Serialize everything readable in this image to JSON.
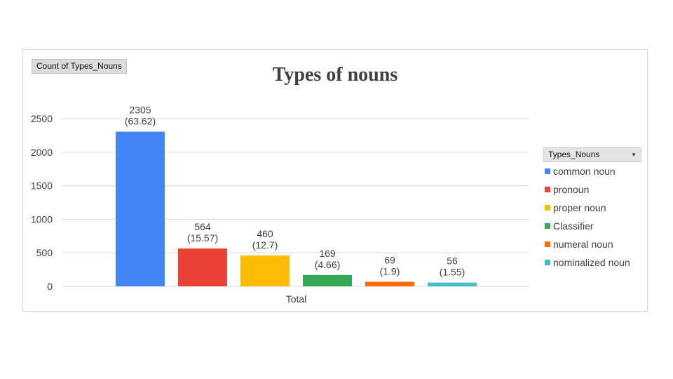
{
  "field_button_label": "Count of Types_Nouns",
  "legend_header_label": "Types_Nouns",
  "chart_data": {
    "type": "bar",
    "title": "Types of nouns",
    "xlabel": "",
    "ylabel": "",
    "categories": [
      "Total"
    ],
    "ylim": [
      0,
      2500
    ],
    "yticks": [
      0,
      500,
      1000,
      1500,
      2000,
      2500
    ],
    "grid": true,
    "legend_position": "right",
    "series": [
      {
        "name": "common noun",
        "values": [
          2305
        ],
        "label": "2305\n(63.62)",
        "color": "#4285f4"
      },
      {
        "name": "pronoun",
        "values": [
          564
        ],
        "label": "564\n(15.57)",
        "color": "#ea4335"
      },
      {
        "name": "proper noun",
        "values": [
          460
        ],
        "label": "460\n(12.7)",
        "color": "#fbbc04"
      },
      {
        "name": "Classifier",
        "values": [
          169
        ],
        "label": "169\n(4.66)",
        "color": "#34a853"
      },
      {
        "name": "numeral noun",
        "values": [
          69
        ],
        "label": "69\n(1.9)",
        "color": "#ff6d01"
      },
      {
        "name": "nominalized noun",
        "values": [
          56
        ],
        "label": "56\n(1.55)",
        "color": "#46bdc6"
      }
    ]
  }
}
